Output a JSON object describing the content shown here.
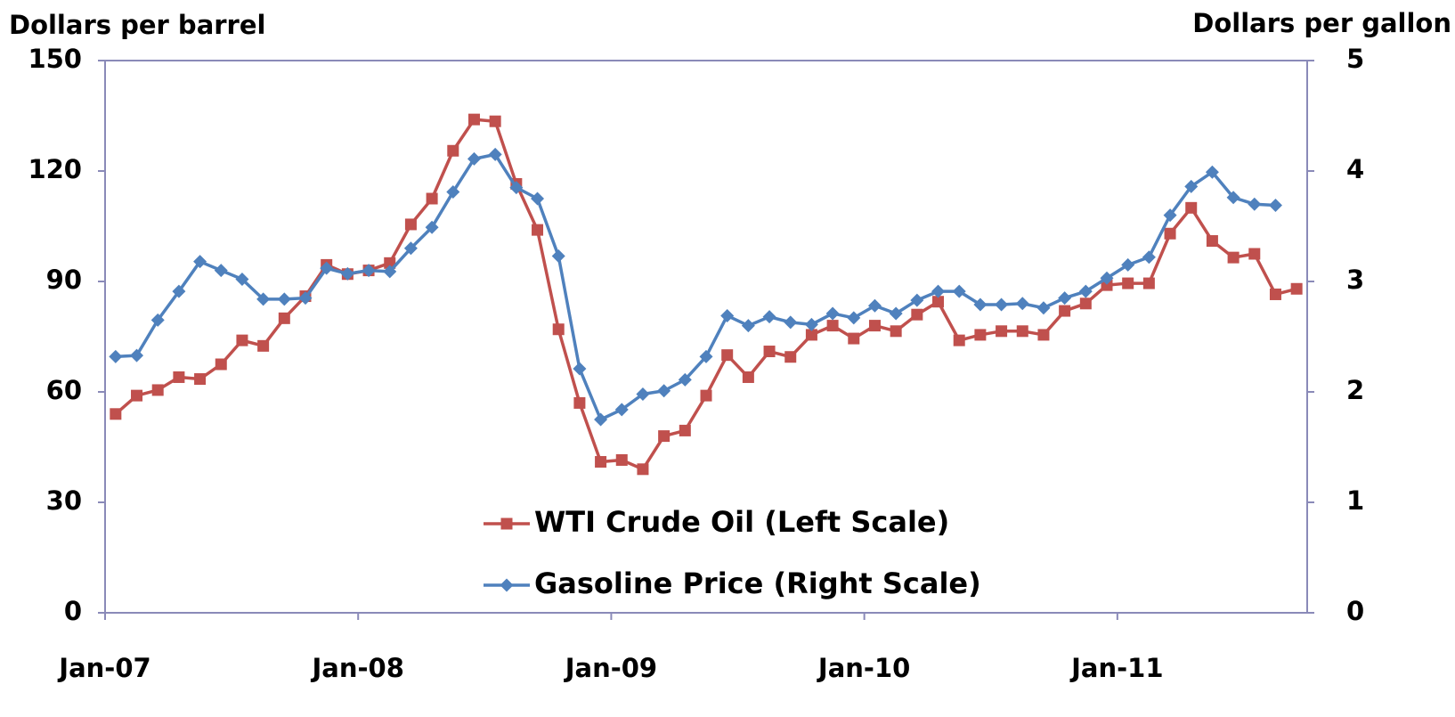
{
  "chart_data": {
    "type": "line",
    "y_label": "Dollars per barrel",
    "y2_label": "Dollars per gallon",
    "categories": [
      "Jan-07",
      null,
      null,
      null,
      null,
      null,
      null,
      null,
      null,
      null,
      null,
      null,
      "Jan-08",
      null,
      null,
      null,
      null,
      null,
      null,
      null,
      null,
      null,
      null,
      null,
      "Jan-09",
      null,
      null,
      null,
      null,
      null,
      null,
      null,
      null,
      null,
      null,
      null,
      "Jan-10",
      null,
      null,
      null,
      null,
      null,
      null,
      null,
      null,
      null,
      null,
      null,
      "Jan-11",
      null,
      null,
      null,
      null,
      null,
      null,
      null,
      null
    ],
    "series": [
      {
        "name": "WTI Crude Oil (Left Scale)",
        "color": "#c0504d",
        "marker": "square",
        "values": [
          54,
          59,
          60.5,
          64,
          63.5,
          67.5,
          74,
          72.5,
          80,
          86,
          94.5,
          92,
          93,
          95,
          105.5,
          112.5,
          125.5,
          134,
          133.5,
          116.5,
          104,
          77,
          57,
          41,
          41.5,
          39,
          48,
          49.5,
          59,
          70,
          64,
          71,
          69.5,
          75.5,
          78,
          74.5,
          78,
          76.5,
          81,
          84.5,
          74,
          75.5,
          76.5,
          76.5,
          75.5,
          82,
          84,
          89,
          89.5,
          89.5,
          103,
          110,
          101,
          96.5,
          97.5,
          86.5,
          88
        ]
      },
      {
        "name": "Gasoline Price (Right Scale)",
        "color": "#4f81bd",
        "marker": "diamond",
        "axis": "y2",
        "values": [
          2.32,
          2.33,
          2.65,
          2.91,
          3.18,
          3.1,
          3.02,
          2.84,
          2.84,
          2.85,
          3.12,
          3.07,
          3.1,
          3.09,
          3.3,
          3.49,
          3.81,
          4.11,
          4.15,
          3.85,
          3.75,
          3.23,
          2.21,
          1.75,
          1.84,
          1.98,
          2.01,
          2.11,
          2.32,
          2.69,
          2.6,
          2.68,
          2.63,
          2.61,
          2.71,
          2.67,
          2.78,
          2.71,
          2.83,
          2.91,
          2.91,
          2.79,
          2.79,
          2.8,
          2.76,
          2.85,
          2.91,
          3.03,
          3.15,
          3.22,
          3.6,
          3.86,
          3.99,
          3.76,
          3.7,
          3.69,
          null
        ]
      }
    ],
    "ylim": [
      0,
      150
    ],
    "yticks": [
      0,
      30,
      60,
      90,
      120,
      150
    ],
    "y2lim": [
      0,
      5
    ],
    "y2ticks": [
      0,
      1,
      2,
      3,
      4,
      5
    ],
    "grid": false,
    "legend": "lower center"
  }
}
